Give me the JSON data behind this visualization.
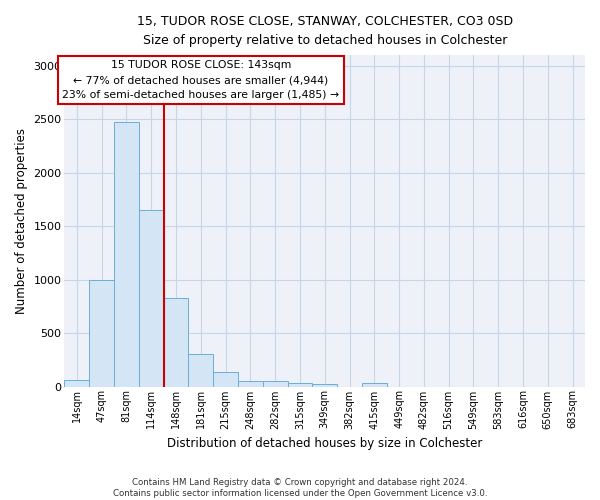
{
  "title_line1": "15, TUDOR ROSE CLOSE, STANWAY, COLCHESTER, CO3 0SD",
  "title_line2": "Size of property relative to detached houses in Colchester",
  "xlabel": "Distribution of detached houses by size in Colchester",
  "ylabel": "Number of detached properties",
  "categories": [
    "14sqm",
    "47sqm",
    "81sqm",
    "114sqm",
    "148sqm",
    "181sqm",
    "215sqm",
    "248sqm",
    "282sqm",
    "315sqm",
    "349sqm",
    "382sqm",
    "415sqm",
    "449sqm",
    "482sqm",
    "516sqm",
    "549sqm",
    "583sqm",
    "616sqm",
    "650sqm",
    "683sqm"
  ],
  "values": [
    65,
    1000,
    2470,
    1650,
    830,
    300,
    135,
    55,
    50,
    35,
    20,
    0,
    30,
    0,
    0,
    0,
    0,
    0,
    0,
    0,
    0
  ],
  "bar_color": "#d4e6f5",
  "bar_edge_color": "#6aaed6",
  "vline_x_pos": 3.5,
  "vline_color": "#cc0000",
  "annotation_text": "15 TUDOR ROSE CLOSE: 143sqm\n← 77% of detached houses are smaller (4,944)\n23% of semi-detached houses are larger (1,485) →",
  "annotation_box_edge_color": "#cc0000",
  "ylim": [
    0,
    3100
  ],
  "yticks": [
    0,
    500,
    1000,
    1500,
    2000,
    2500,
    3000
  ],
  "grid_color": "#c8d4e8",
  "background_color": "#eef2f8",
  "footer": "Contains HM Land Registry data © Crown copyright and database right 2024.\nContains public sector information licensed under the Open Government Licence v3.0."
}
